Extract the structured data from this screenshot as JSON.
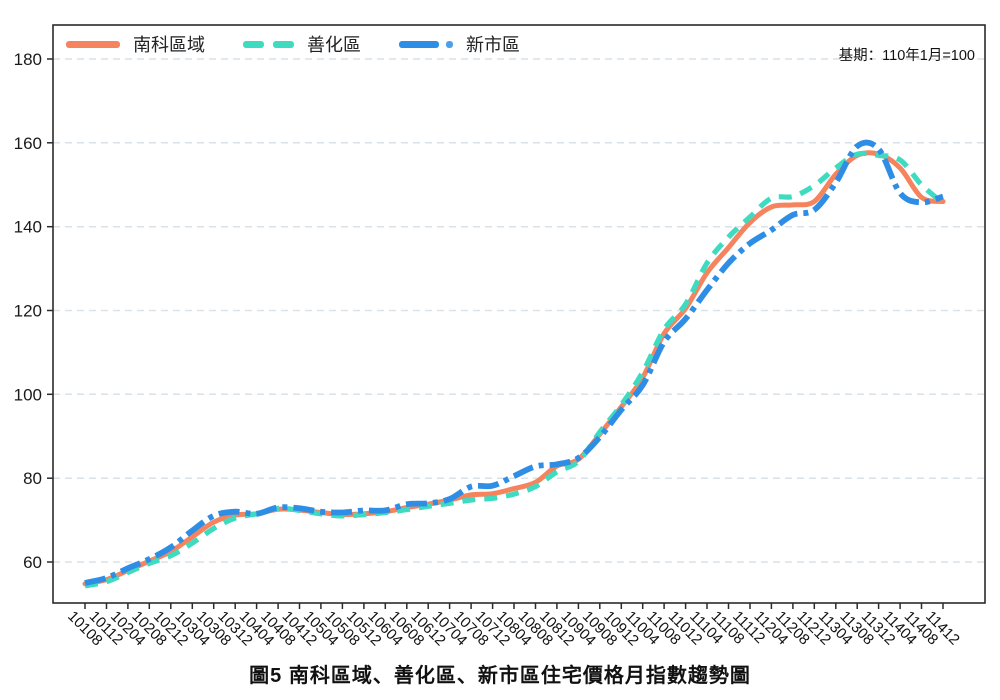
{
  "note": "基期：110年1月=100",
  "caption": "圖5 南科區域、善化區、新市區住宅價格月指數趨勢圖",
  "colors": {
    "nanke": "#F5845E",
    "shanhua": "#3EDBC1",
    "xinshi": "#2E8EE5",
    "grid": "#D9E2E9",
    "axis": "#2B2B2B"
  },
  "chart_data": {
    "type": "line",
    "title": "圖5 南科區域、善化區、新市區住宅價格月指數趨勢圖",
    "xlabel": "",
    "ylabel": "",
    "yticks": [
      60,
      80,
      100,
      120,
      140,
      160,
      180
    ],
    "ylim": [
      50,
      188
    ],
    "grid": true,
    "legend_position": "top-left",
    "categories": [
      "10108",
      "10112",
      "10204",
      "10208",
      "10212",
      "10304",
      "10308",
      "10312",
      "10404",
      "10408",
      "10412",
      "10504",
      "10508",
      "10512",
      "10604",
      "10608",
      "10612",
      "10704",
      "10708",
      "10712",
      "10804",
      "10808",
      "10812",
      "10904",
      "10908",
      "10912",
      "11004",
      "11008",
      "11012",
      "11104",
      "11108",
      "11112",
      "11204",
      "11208",
      "11212",
      "11304",
      "11308",
      "11312",
      "11404",
      "11408",
      "11412"
    ],
    "series": [
      {
        "name": "南科區域",
        "color": "#F5845E",
        "style": "solid",
        "values": [
          54.8,
          55.8,
          58.0,
          60.2,
          62.5,
          66.0,
          69.5,
          71.2,
          71.5,
          72.6,
          72.4,
          71.8,
          71.3,
          71.5,
          72.0,
          73.0,
          73.8,
          74.8,
          76.0,
          76.3,
          77.5,
          79.0,
          82.9,
          84.5,
          90.5,
          97.0,
          104.0,
          114.5,
          120.5,
          129.0,
          135.0,
          141.0,
          144.7,
          145.2,
          146.0,
          152.5,
          157.0,
          157.3,
          154.0,
          147.0,
          146.0
        ]
      },
      {
        "name": "善化區",
        "color": "#3EDBC1",
        "style": "dashed",
        "values": [
          54.3,
          55.3,
          57.5,
          59.7,
          61.5,
          64.5,
          68.0,
          70.5,
          71.5,
          72.8,
          72.3,
          71.5,
          71.0,
          71.3,
          71.8,
          72.5,
          73.3,
          74.0,
          74.8,
          75.2,
          76.2,
          78.0,
          81.5,
          84.0,
          91.0,
          97.5,
          105.3,
          115.5,
          121.5,
          131.3,
          137.5,
          142.3,
          146.8,
          147.2,
          149.8,
          154.0,
          157.3,
          157.0,
          155.9,
          150.0,
          145.6
        ]
      },
      {
        "name": "新市區",
        "color": "#2E8EE5",
        "style": "dashdot",
        "values": [
          55.0,
          56.2,
          58.5,
          60.7,
          63.5,
          67.5,
          71.0,
          72.0,
          71.5,
          73.0,
          72.8,
          72.0,
          71.8,
          72.3,
          72.3,
          73.8,
          74.0,
          75.0,
          78.0,
          78.2,
          80.5,
          82.8,
          83.3,
          84.8,
          89.8,
          96.3,
          102.2,
          112.5,
          118.0,
          124.9,
          131.3,
          136.0,
          139.2,
          142.8,
          144.0,
          150.5,
          159.2,
          158.5,
          148.0,
          145.8,
          147.2
        ]
      }
    ]
  }
}
